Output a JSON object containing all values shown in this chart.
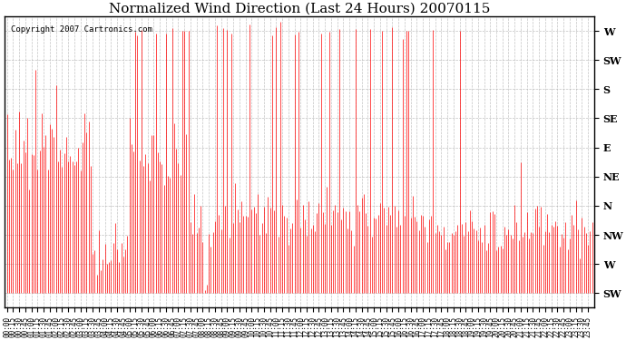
{
  "title": "Normalized Wind Direction (Last 24 Hours) 20070115",
  "copyright": "Copyright 2007 Cartronics.com",
  "line_color": "#FF0000",
  "background_color": "#FFFFFF",
  "grid_color": "#AAAAAA",
  "border_color": "#000000",
  "title_color": "#000000",
  "ytick_labels": [
    "SW",
    "W",
    "NW",
    "N",
    "NE",
    "E",
    "SE",
    "S",
    "SW",
    "W"
  ],
  "ytick_values": [
    0,
    1,
    2,
    3,
    4,
    5,
    6,
    7,
    8,
    9
  ],
  "ylim": [
    -0.5,
    9.5
  ],
  "figsize": [
    6.9,
    3.75
  ],
  "dpi": 100
}
